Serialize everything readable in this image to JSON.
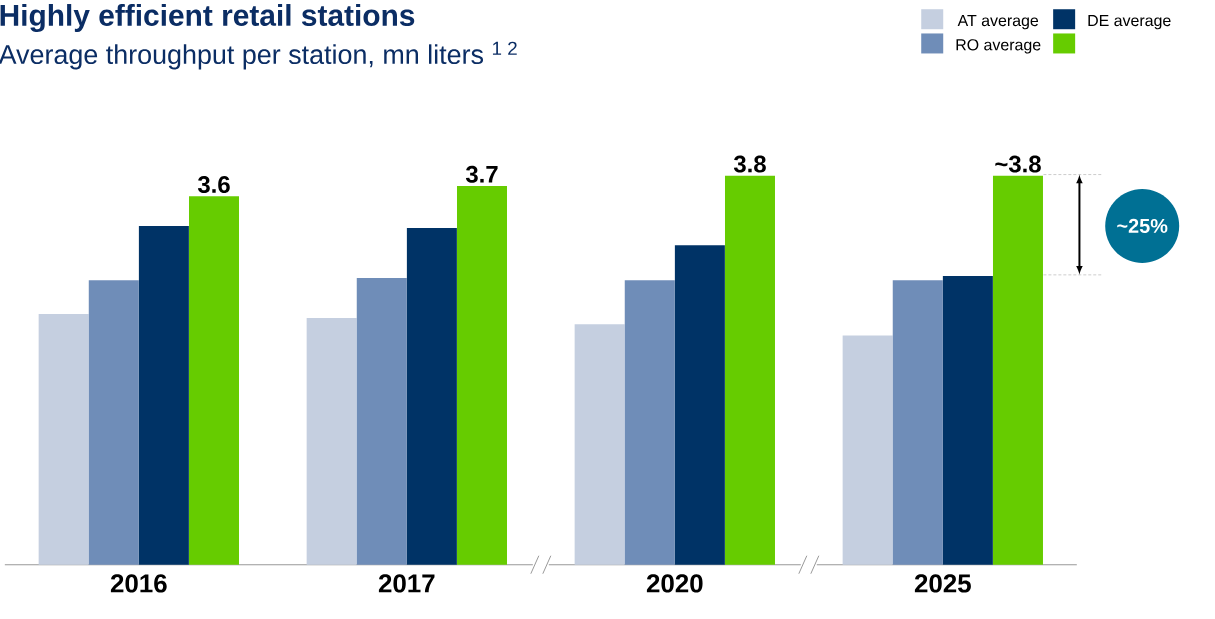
{
  "chart_data": {
    "type": "bar",
    "title": "Highly efficient retail stations",
    "subtitle": "Average throughput per station, mn liters $^{1 2}$",
    "categories": [
      "2016",
      "2017",
      "2020",
      "2025"
    ],
    "series": [
      {
        "name": "AT average",
        "color": "#c5cfe0",
        "values": [
          2.45,
          2.41,
          2.35,
          2.24
        ]
      },
      {
        "name": "RO average",
        "color": "#6f8db8",
        "values": [
          2.78,
          2.8,
          2.78,
          2.78
        ]
      },
      {
        "name": "DE average",
        "color": "#003366",
        "values": [
          3.31,
          3.29,
          3.12,
          2.82
        ]
      },
      {
        "color": "#66cc00",
        "values": [
          3.6,
          3.7,
          3.8,
          3.8
        ],
        "value_labels": [
          "3.6",
          "3.7",
          "3.8",
          "~3.8"
        ]
      }
    ],
    "annotations": [
      "~25%"
    ],
    "legend": "top right"
  }
}
